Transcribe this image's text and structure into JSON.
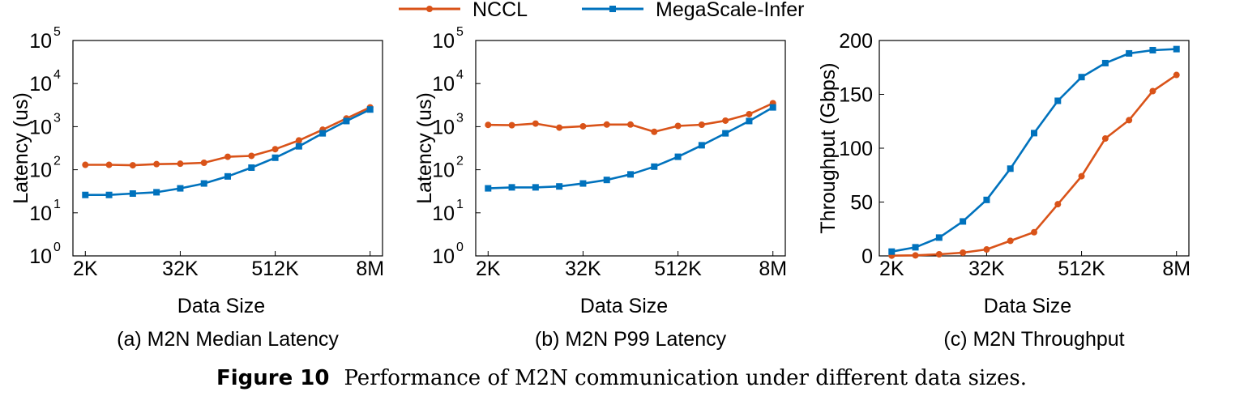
{
  "legend": [
    {
      "name": "NCCL",
      "color": "#d95319",
      "marker": "circle"
    },
    {
      "name": "MegaScale-Infer",
      "color": "#0072bd",
      "marker": "square"
    }
  ],
  "figure_caption": {
    "number": "Figure 10",
    "text": "Performance of M2N communication under different data sizes."
  },
  "chart_data": [
    {
      "type": "line",
      "subcaption": "(a) M2N Median Latency",
      "xlabel": "Data Size",
      "ylabel": "Latency (us)",
      "yscale": "log",
      "ylim": [
        1,
        100000
      ],
      "x_tick_labels": [
        "2K",
        "32K",
        "512K",
        "8M"
      ],
      "y_ticks": [
        {
          "base": "10",
          "exp": "0"
        },
        {
          "base": "10",
          "exp": "1"
        },
        {
          "base": "10",
          "exp": "2"
        },
        {
          "base": "10",
          "exp": "3"
        },
        {
          "base": "10",
          "exp": "4"
        },
        {
          "base": "10",
          "exp": "5"
        }
      ],
      "series": [
        {
          "name": "NCCL",
          "values": [
            130,
            130,
            127,
            135,
            138,
            145,
            200,
            210,
            300,
            480,
            850,
            1550,
            2800
          ]
        },
        {
          "name": "MegaScale-Infer",
          "values": [
            26,
            26,
            28,
            30,
            37,
            48,
            70,
            112,
            190,
            350,
            700,
            1350,
            2500
          ]
        }
      ]
    },
    {
      "type": "line",
      "subcaption": "(b) M2N P99 Latency",
      "xlabel": "Data Size",
      "ylabel": "Latency (us)",
      "yscale": "log",
      "ylim": [
        1,
        100000
      ],
      "x_tick_labels": [
        "2K",
        "32K",
        "512K",
        "8M"
      ],
      "y_ticks": [
        {
          "base": "10",
          "exp": "0"
        },
        {
          "base": "10",
          "exp": "1"
        },
        {
          "base": "10",
          "exp": "2"
        },
        {
          "base": "10",
          "exp": "3"
        },
        {
          "base": "10",
          "exp": "4"
        },
        {
          "base": "10",
          "exp": "5"
        }
      ],
      "series": [
        {
          "name": "NCCL",
          "values": [
            1100,
            1080,
            1180,
            950,
            1020,
            1120,
            1120,
            760,
            1040,
            1110,
            1380,
            1950,
            3500
          ]
        },
        {
          "name": "MegaScale-Infer",
          "values": [
            37,
            39,
            39,
            41,
            48,
            58,
            78,
            118,
            200,
            370,
            700,
            1350,
            2800
          ]
        }
      ]
    },
    {
      "type": "line",
      "subcaption": "(c) M2N Throughput",
      "xlabel": "Data Size",
      "ylabel": "Throughput (Gbps)",
      "yscale": "linear",
      "ylim": [
        0,
        200
      ],
      "x_tick_labels": [
        "2K",
        "32K",
        "512K",
        "8M"
      ],
      "y_ticks": [
        "0",
        "50",
        "100",
        "150",
        "200"
      ],
      "series": [
        {
          "name": "NCCL",
          "values": [
            0.2,
            0.5,
            1.5,
            3,
            6,
            14,
            22,
            48,
            74,
            109,
            126,
            153,
            168
          ]
        },
        {
          "name": "MegaScale-Infer",
          "values": [
            4,
            8,
            17,
            32,
            52,
            81,
            114,
            144,
            166,
            179,
            188,
            191,
            192
          ]
        }
      ]
    }
  ]
}
